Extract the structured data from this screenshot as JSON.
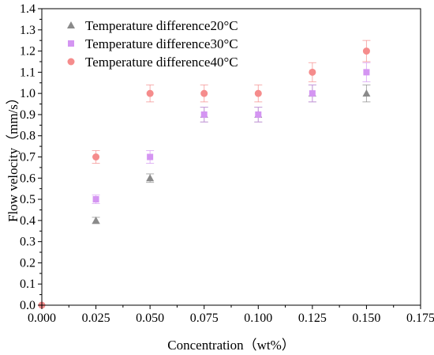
{
  "chart_data": {
    "type": "scatter",
    "title": "",
    "xlabel": "Concentration（wt%）",
    "ylabel": "Flow velocity（mm/s）",
    "xlim": [
      0.0,
      0.175
    ],
    "ylim": [
      0.0,
      1.4
    ],
    "xticks": [
      "0.000",
      "0.025",
      "0.050",
      "0.075",
      "0.100",
      "0.125",
      "0.150",
      "0.175"
    ],
    "yticks": [
      "0.0",
      "0.1",
      "0.2",
      "0.3",
      "0.4",
      "0.5",
      "0.6",
      "0.7",
      "0.8",
      "0.9",
      "1.0",
      "1.1",
      "1.2",
      "1.3",
      "1.4"
    ],
    "grid": false,
    "legend_position": "top-left",
    "series": [
      {
        "name": "Temperature difference20°C",
        "marker": "triangle",
        "color": "#8a8a8a",
        "x": [
          0.025,
          0.05,
          0.075,
          0.1,
          0.125,
          0.15
        ],
        "y": [
          0.4,
          0.6,
          0.9,
          0.9,
          1.0,
          1.0
        ],
        "error": [
          0.015,
          0.02,
          0.035,
          0.035,
          0.04,
          0.04
        ]
      },
      {
        "name": "Temperature difference30°C",
        "marker": "square",
        "color": "#d495f2",
        "x": [
          0.025,
          0.05,
          0.075,
          0.1,
          0.125,
          0.15
        ],
        "y": [
          0.5,
          0.7,
          0.9,
          0.9,
          1.0,
          1.1
        ],
        "error": [
          0.02,
          0.03,
          0.035,
          0.035,
          0.04,
          0.045
        ]
      },
      {
        "name": "Temperature difference40°C",
        "marker": "circle",
        "color": "#f58c8c",
        "x": [
          0.0,
          0.025,
          0.05,
          0.075,
          0.1,
          0.125,
          0.15
        ],
        "y": [
          0.0,
          0.7,
          1.0,
          1.0,
          1.0,
          1.1,
          1.2
        ],
        "error": [
          0.0,
          0.03,
          0.04,
          0.04,
          0.04,
          0.045,
          0.05
        ]
      }
    ]
  }
}
